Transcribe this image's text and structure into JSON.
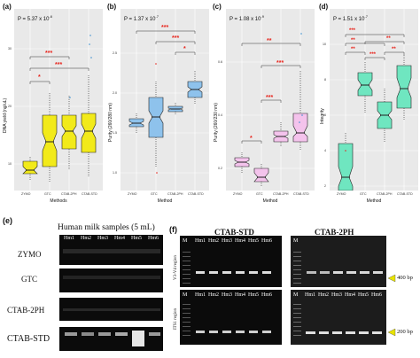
{
  "panels": {
    "a": {
      "label": "(a)",
      "p": "P = 5.37 x 10",
      "p_exp": "-6",
      "ylabel": "DNA yield (ng/uL)",
      "xlabel": "Methods",
      "cats": [
        "ZYMO",
        "GTC",
        "CTAB-2PH",
        "CTAB-STD"
      ],
      "yticks": [
        "30",
        "20",
        "10"
      ],
      "sig": [
        {
          "text": "***"
        },
        {
          "text": "***"
        },
        {
          "text": "*"
        }
      ],
      "color": "#f2ea1a"
    },
    "b": {
      "label": "(b)",
      "p": "P = 1.37 x 10",
      "p_exp": "-7",
      "ylabel": "Purity (260/280 nm)",
      "xlabel": "Method",
      "cats": [
        "ZYMO",
        "GTC",
        "CTAB-2PH",
        "CTAB-STD"
      ],
      "yticks": [
        "2.5",
        "2.0",
        "1.5",
        "1.0"
      ],
      "sig": [
        {
          "text": "***"
        },
        {
          "text": "***"
        },
        {
          "text": "*"
        }
      ],
      "color": "#8ec2ec"
    },
    "c": {
      "label": "(c)",
      "p": "P = 1.08 x 10",
      "p_exp": "-9",
      "ylabel": "Purity (260/230 nm)",
      "xlabel": "Method",
      "cats": [
        "ZYMO",
        "GTC",
        "CTAB-2PH",
        "CTAB-STD"
      ],
      "yticks": [
        "0.6",
        "0.4",
        "0.2"
      ],
      "sig": [
        {
          "text": "**"
        },
        {
          "text": "***"
        },
        {
          "text": "***"
        },
        {
          "text": "*"
        }
      ],
      "color": "#f4c3ec"
    },
    "d": {
      "label": "(d)",
      "p": "P = 1.51 x 10",
      "p_exp": "-7",
      "ylabel": "Integrity",
      "xlabel": "Method",
      "cats": [
        "ZYMO",
        "GTC",
        "CTAB-2PH",
        "CTAB-STD"
      ],
      "yticks": [
        "10",
        "8",
        "6",
        "4",
        "2"
      ],
      "sig": [
        {
          "text": "***"
        },
        {
          "text": "**"
        },
        {
          "text": "**"
        },
        {
          "text": "**"
        },
        {
          "text": "***"
        },
        {
          "text": "**"
        }
      ],
      "color": "#6fe6c0"
    }
  },
  "panel_e": {
    "label": "(e)",
    "title": "Human milk samples (5 mL)",
    "lanes": [
      "Hm1",
      "Hm2",
      "Hm3",
      "Hm4",
      "Hm5",
      "Hm6"
    ],
    "rows": [
      "ZYMO",
      "GTC",
      "CTAB-2PH",
      "CTAB-STD"
    ]
  },
  "panel_f": {
    "label": "(f)",
    "gel1_title": "CTAB-STD",
    "gel2_title": "CTAB-2PH",
    "lanes": [
      "M",
      "Hm1",
      "Hm2",
      "Hm3",
      "Hm4",
      "Hm5",
      "Hm6"
    ],
    "region_top": "V3-V4 region",
    "region_bottom": "ITS1 region",
    "bp_top": "400 bp",
    "bp_bottom": "200 bp"
  },
  "colors": {
    "panel_bg": "#e9e9e9",
    "sig": "#e8241c",
    "gel_bg": "#0b0b0b",
    "arrow": "#e8e300"
  }
}
